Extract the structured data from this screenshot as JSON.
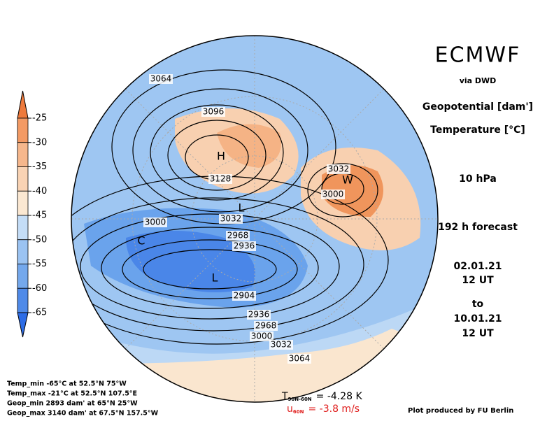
{
  "header": {
    "title": "ECMWF",
    "source": "via DWD"
  },
  "info": {
    "variables": [
      "Geopotential [dam']",
      "Temperature [°C]"
    ],
    "level": "10 hPa",
    "forecast": "192 h forecast",
    "valid_from": [
      "02.01.21",
      "12 UT"
    ],
    "to": "to",
    "valid_to": [
      "10.01.21",
      "12 UT"
    ]
  },
  "colorbar": {
    "ticks": [
      -25,
      -30,
      -35,
      -40,
      -45,
      -50,
      -55,
      -60,
      -65
    ],
    "colors": [
      "#ee7a3c",
      "#f39a64",
      "#f6b78c",
      "#f9d3b4",
      "#fbe8d2",
      "#c4ddf7",
      "#9bc3f2",
      "#74a8ec",
      "#4f8ae8",
      "#2d6ce6"
    ]
  },
  "map": {
    "contour_labels": [
      "3064",
      "3096",
      "3128",
      "3032",
      "3000",
      "3000",
      "3032",
      "2968",
      "2936",
      "2904",
      "2936",
      "2968",
      "3000",
      "3032",
      "3064"
    ],
    "centers": [
      "H",
      "W",
      "L",
      "L",
      "C"
    ]
  },
  "stats": [
    "Temp_min -65°C at 52.5°N 75°W",
    "Temp_max -21°C at 52.5°N 107.5°E",
    "Geop_min 2893 dam' at 65°N 25°W",
    "Geop_max 3140 dam' at 67.5°N 157.5°W"
  ],
  "temperature_diff": {
    "symbol": "T",
    "subscript": "90N-60N",
    "text": "= -4.28 K"
  },
  "wind": {
    "symbol": "u",
    "subscript": "60N",
    "text": "= -3.8 m/s"
  },
  "credit": "Plot produced by FU Berlin"
}
